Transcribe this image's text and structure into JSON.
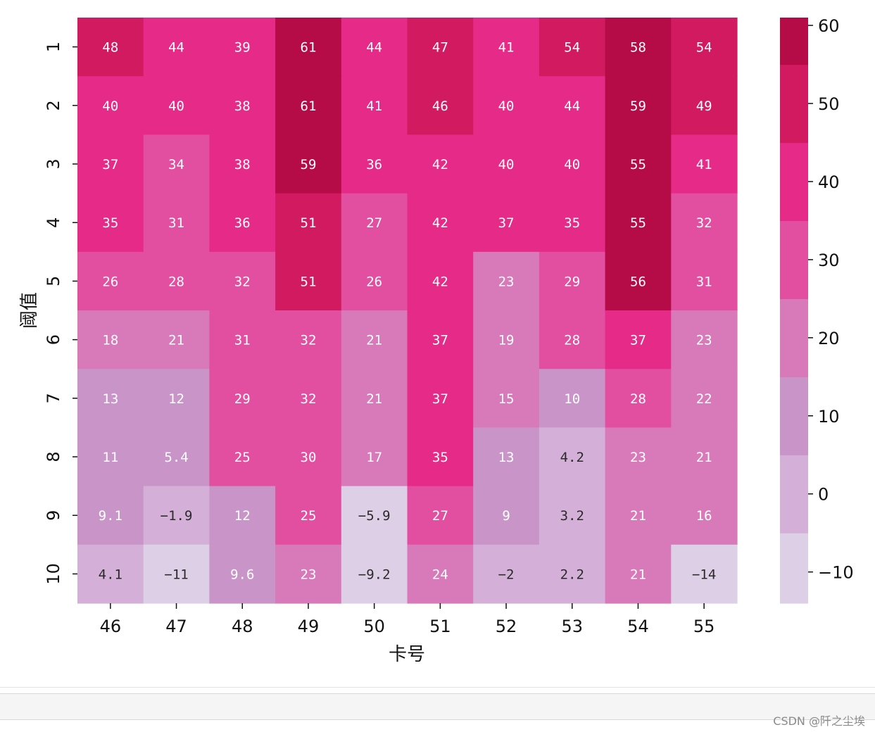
{
  "chart_data": {
    "type": "heatmap",
    "title": "",
    "xlabel": "卡号",
    "ylabel": "阈值",
    "x_categories": [
      "46",
      "47",
      "48",
      "49",
      "50",
      "51",
      "52",
      "53",
      "54",
      "55"
    ],
    "y_categories": [
      "1",
      "2",
      "3",
      "4",
      "5",
      "6",
      "7",
      "8",
      "9",
      "10"
    ],
    "values": [
      [
        48,
        44,
        39,
        61,
        44,
        47,
        41,
        54,
        58,
        54
      ],
      [
        40,
        40,
        38,
        61,
        41,
        46,
        40,
        44,
        59,
        49
      ],
      [
        37,
        34,
        38,
        59,
        36,
        42,
        40,
        40,
        55,
        41
      ],
      [
        35,
        31,
        36,
        51,
        27,
        42,
        37,
        35,
        55,
        32
      ],
      [
        26,
        28,
        32,
        51,
        26,
        42,
        23,
        29,
        56,
        31
      ],
      [
        18,
        21,
        31,
        32,
        21,
        37,
        19,
        28,
        37,
        23
      ],
      [
        13,
        12,
        29,
        32,
        21,
        37,
        15,
        10,
        28,
        22
      ],
      [
        11,
        5.4,
        25,
        30,
        17,
        35,
        13,
        4.2,
        23,
        21
      ],
      [
        9.1,
        -1.9,
        12,
        25,
        -5.9,
        27,
        9,
        3.2,
        21,
        16
      ],
      [
        4.1,
        -11,
        9.6,
        23,
        -9.2,
        24,
        -2,
        2.2,
        21,
        -14
      ]
    ],
    "cell_labels": [
      [
        "48",
        "44",
        "39",
        "61",
        "44",
        "47",
        "41",
        "54",
        "58",
        "54"
      ],
      [
        "40",
        "40",
        "38",
        "61",
        "41",
        "46",
        "40",
        "44",
        "59",
        "49"
      ],
      [
        "37",
        "34",
        "38",
        "59",
        "36",
        "42",
        "40",
        "40",
        "55",
        "41"
      ],
      [
        "35",
        "31",
        "36",
        "51",
        "27",
        "42",
        "37",
        "35",
        "55",
        "32"
      ],
      [
        "26",
        "28",
        "32",
        "51",
        "26",
        "42",
        "23",
        "29",
        "56",
        "31"
      ],
      [
        "18",
        "21",
        "31",
        "32",
        "21",
        "37",
        "19",
        "28",
        "37",
        "23"
      ],
      [
        "13",
        "12",
        "29",
        "32",
        "21",
        "37",
        "15",
        "10",
        "28",
        "22"
      ],
      [
        "11",
        "5.4",
        "25",
        "30",
        "17",
        "35",
        "13",
        "4.2",
        "23",
        "21"
      ],
      [
        "9.1",
        "-1.9",
        "12",
        "25",
        "-5.9",
        "27",
        "9",
        "3.2",
        "21",
        "16"
      ],
      [
        "4.1",
        "-11",
        "9.6",
        "23",
        "-9.2",
        "24",
        "-2",
        "2.2",
        "21",
        "-14"
      ]
    ],
    "colorbar": {
      "range": [
        -14,
        61
      ],
      "bin_edges": [
        -14,
        -5,
        5,
        15,
        25,
        35,
        45,
        55,
        61
      ],
      "bin_colors": [
        "#ddd0e6",
        "#d4b0d8",
        "#c995c8",
        "#d87ab9",
        "#e24fa0",
        "#e52a88",
        "#d21a61",
        "#b50b46"
      ],
      "dark_text_below": 5,
      "ticks": [
        -10,
        0,
        10,
        20,
        30,
        40,
        50,
        60
      ],
      "tick_labels": [
        "-10",
        "0",
        "10",
        "20",
        "30",
        "40",
        "50",
        "60"
      ]
    }
  },
  "watermark": "CSDN @阡之尘埃"
}
